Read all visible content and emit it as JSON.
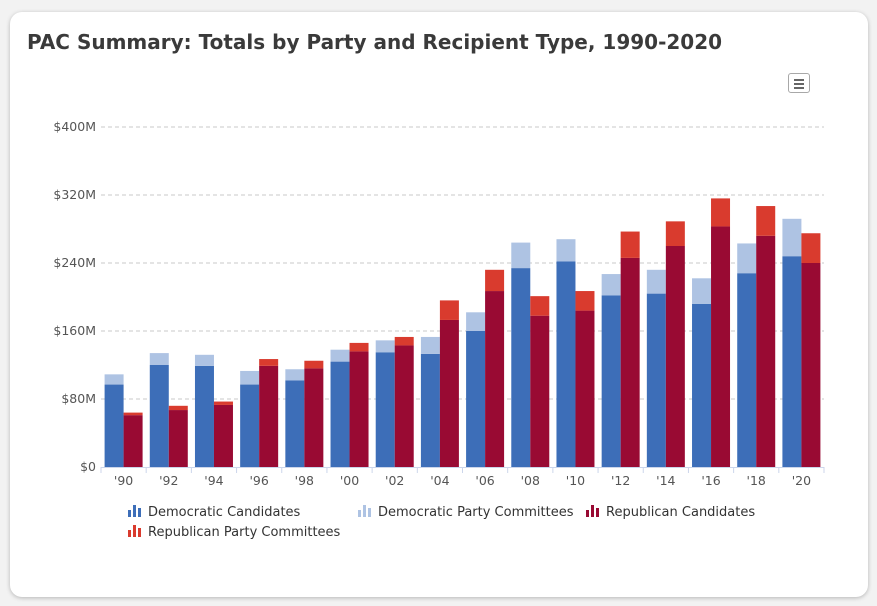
{
  "title": "PAC Summary: Totals by Party and Recipient Type, 1990-2020",
  "menu": {
    "icon": "hamburger-menu-icon"
  },
  "chart_data": {
    "type": "bar",
    "stacking": "stacked",
    "title": "PAC Summary: Totals by Party and Recipient Type, 1990-2020",
    "categories": [
      "'90",
      "'92",
      "'94",
      "'96",
      "'98",
      "'00",
      "'02",
      "'04",
      "'06",
      "'08",
      "'10",
      "'12",
      "'14",
      "'16",
      "'18",
      "'20"
    ],
    "ylim": [
      0,
      400
    ],
    "yticks": [
      0,
      80,
      160,
      240,
      320,
      400
    ],
    "ytick_labels": [
      "$0",
      "$80M",
      "$160M",
      "$240M",
      "$320M",
      "$400M"
    ],
    "grid": true,
    "legend_position": "bottom",
    "groups": [
      {
        "name": "Democratic",
        "series": [
          {
            "name": "Democratic Candidates",
            "color": "#3d6eb8",
            "values": [
              97,
              120,
              119,
              97,
              102,
              124,
              135,
              133,
              160,
              234,
              242,
              202,
              204,
              192,
              228,
              248
            ]
          },
          {
            "name": "Democratic Party Committees",
            "color": "#aec3e3",
            "values": [
              12,
              14,
              13,
              16,
              13,
              14,
              14,
              20,
              22,
              30,
              26,
              25,
              28,
              30,
              35,
              44
            ]
          }
        ]
      },
      {
        "name": "Republican",
        "series": [
          {
            "name": "Republican Candidates",
            "color": "#990a33",
            "values": [
              61,
              67,
              73,
              119,
              116,
              136,
              143,
              173,
              207,
              178,
              184,
              246,
              260,
              283,
              272,
              240
            ]
          },
          {
            "name": "Republican Party Committees",
            "color": "#d93b2e",
            "values": [
              3,
              5,
              4,
              8,
              9,
              10,
              10,
              23,
              25,
              23,
              23,
              31,
              29,
              33,
              35,
              35
            ]
          }
        ]
      }
    ]
  }
}
